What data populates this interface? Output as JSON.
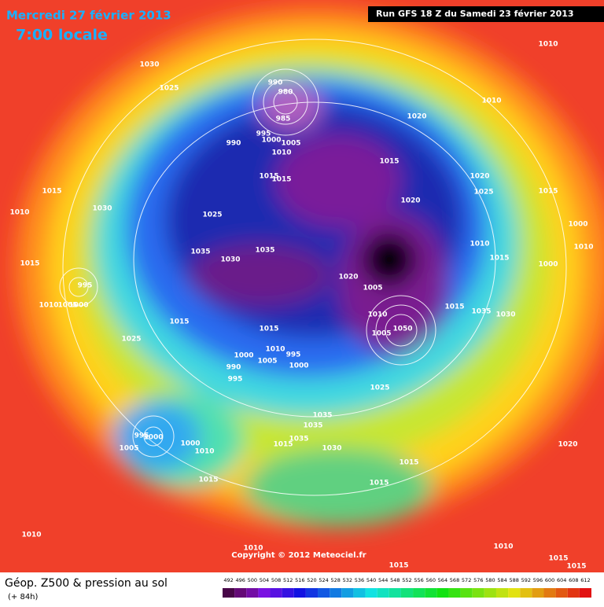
{
  "header": {
    "date": "Mercredi 27 février 2013",
    "time": "7:00 locale",
    "run": "Run GFS 18 Z du Samedi 23 février 2013"
  },
  "footer": {
    "title": "Géop. Z500 & pression au sol",
    "lead": "(+ 84h)",
    "copyright": "Copyright © 2012 Meteociel.fr"
  },
  "legend": {
    "levels": [
      492,
      496,
      500,
      504,
      508,
      512,
      516,
      520,
      524,
      528,
      532,
      536,
      540,
      544,
      548,
      552,
      556,
      560,
      564,
      568,
      572,
      576,
      580,
      584,
      588,
      592,
      596,
      600,
      604,
      608,
      612
    ]
  },
  "isobars": {
    "labels": [
      1030,
      1025,
      990,
      980,
      985,
      995,
      990,
      1000,
      1005,
      1010,
      1015,
      1015,
      1015,
      1020,
      1010,
      1010,
      1020,
      1025,
      1020,
      1015,
      1010,
      1030,
      1025,
      1035,
      1030,
      1035,
      1015,
      995,
      1010,
      1005,
      1000,
      1020,
      1005,
      1015,
      1015,
      1000,
      1015,
      1000,
      1010,
      1010,
      1035,
      1030,
      1010,
      1005,
      1050,
      1015,
      1015,
      1025,
      1010,
      995,
      1000,
      1005,
      1000,
      990,
      995,
      1025,
      1035,
      1035,
      1035,
      1015,
      1030,
      995,
      1000,
      1000,
      1005,
      1010,
      1015,
      1015,
      1015,
      1020,
      1010,
      1010,
      1010,
      1015,
      1015,
      1015
    ]
  }
}
